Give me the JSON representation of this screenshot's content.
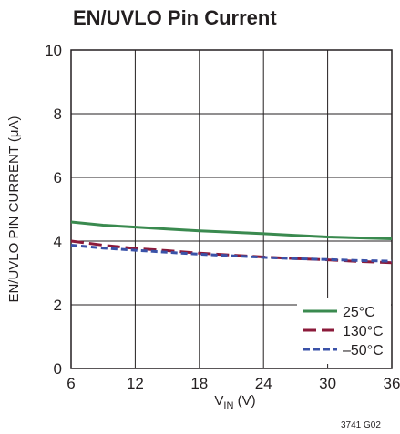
{
  "chart_data": {
    "type": "line",
    "title": "EN/UVLO Pin Current",
    "xlabel_main": "V",
    "xlabel_sub": "IN",
    "xlabel_unit": " (V)",
    "ylabel": "EN/UVLO PIN CURRENT (μA)",
    "xlim": [
      6,
      36
    ],
    "ylim": [
      0,
      10
    ],
    "x_ticks": [
      "6",
      "12",
      "18",
      "24",
      "30",
      "36"
    ],
    "y_ticks": [
      "0",
      "2",
      "4",
      "6",
      "8",
      "10"
    ],
    "grid": true,
    "legend_position": "bottom-right",
    "figure_code": "3741 G02",
    "series": [
      {
        "name": "25°C",
        "color": "#3a8a4f",
        "dash": "solid",
        "x": [
          6,
          9,
          12,
          15,
          18,
          21,
          24,
          27,
          30,
          33,
          36
        ],
        "y": [
          4.6,
          4.5,
          4.44,
          4.38,
          4.32,
          4.28,
          4.23,
          4.18,
          4.13,
          4.1,
          4.07
        ]
      },
      {
        "name": "130°C",
        "color": "#8b1a3a",
        "dash": "long-dash",
        "x": [
          6,
          9,
          12,
          15,
          18,
          21,
          24,
          27,
          30,
          33,
          36
        ],
        "y": [
          4.0,
          3.87,
          3.77,
          3.7,
          3.62,
          3.56,
          3.5,
          3.45,
          3.41,
          3.36,
          3.32
        ]
      },
      {
        "name": "–50°C",
        "color": "#3a52a8",
        "dash": "short-dash",
        "x": [
          6,
          9,
          12,
          15,
          18,
          21,
          24,
          27,
          30,
          33,
          36
        ],
        "y": [
          3.87,
          3.78,
          3.71,
          3.65,
          3.59,
          3.54,
          3.49,
          3.45,
          3.42,
          3.39,
          3.37
        ]
      }
    ]
  }
}
